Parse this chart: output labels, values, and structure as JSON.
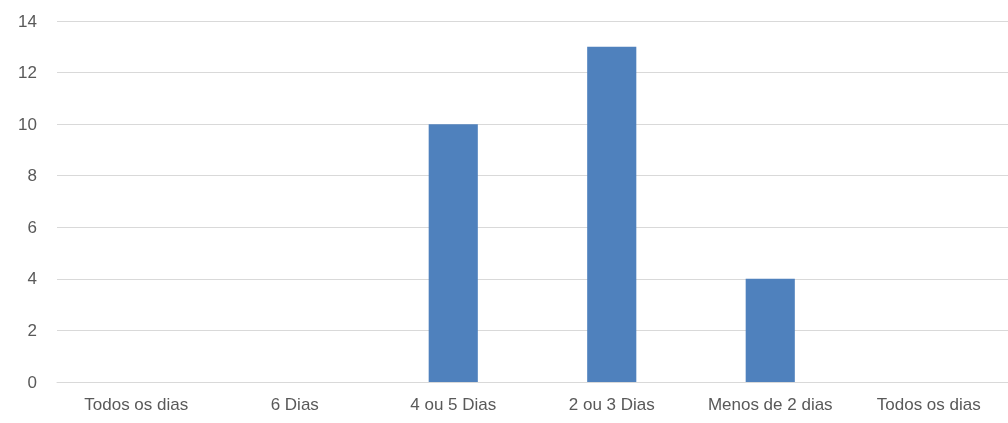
{
  "chart_data": {
    "type": "bar",
    "categories": [
      "Todos os dias",
      "6 Dias",
      "4 ou 5 Dias",
      "2 ou 3 Dias",
      "Menos de 2 dias",
      "Todos os dias"
    ],
    "values": [
      0,
      0,
      10,
      13,
      4,
      0
    ],
    "color": "#4f81bd",
    "ylim": [
      0,
      14
    ],
    "yticks": [
      0,
      2,
      4,
      6,
      8,
      10,
      12,
      14
    ],
    "grid": "y"
  }
}
